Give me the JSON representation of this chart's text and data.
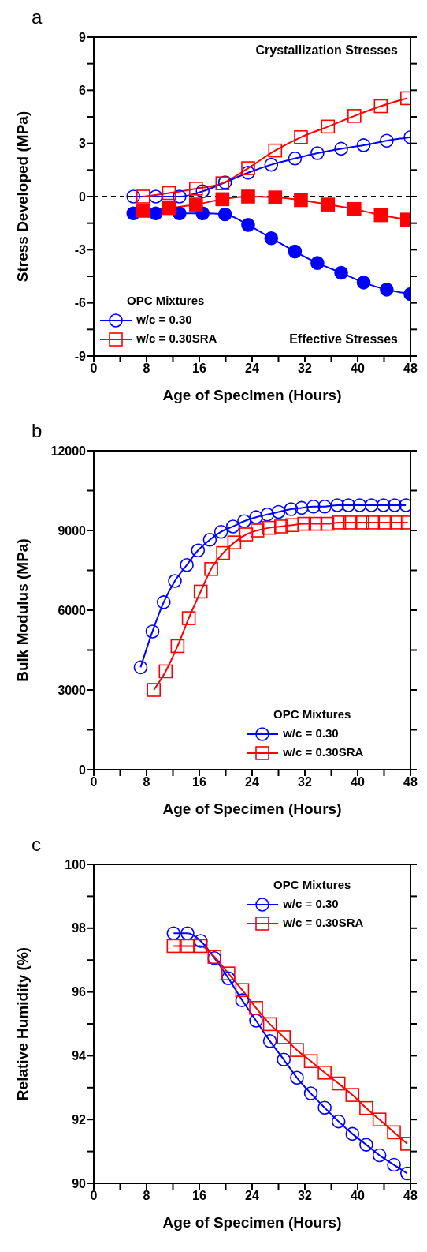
{
  "chart_data": [
    {
      "type": "line",
      "title": "a",
      "xlabel": "Age of Specimen (Hours)",
      "ylabel": "Stress Developed (MPa)",
      "legend_title": "OPC Mixtures",
      "legend": "bottom left",
      "line_style": "solid",
      "annotations": [
        "Crystallization Stresses",
        "Effective Stresses"
      ],
      "xlim": [
        0,
        48
      ],
      "xticks": [
        0,
        {
          "value": 4,
          "label": null
        },
        8,
        {
          "value": 12,
          "label": null
        },
        16,
        {
          "value": 20,
          "label": null
        },
        24,
        {
          "value": 28,
          "label": null
        },
        32,
        {
          "value": 36,
          "label": null
        },
        40,
        {
          "value": 44,
          "label": null
        },
        48
      ],
      "ylim": [
        -9,
        9
      ],
      "yticks": [
        -9,
        {
          "value": -7.5,
          "label": null
        },
        -6,
        {
          "value": -4.5,
          "label": null
        },
        -3,
        {
          "value": -1.5,
          "label": null
        },
        0,
        {
          "value": 1.5,
          "label": null
        },
        3,
        {
          "value": 4.5,
          "label": null
        },
        6,
        {
          "value": 7.5,
          "label": null
        },
        9
      ],
      "ref_lines": [
        {
          "axis": "y",
          "value": 0,
          "color": "#000000",
          "line_style": "dashed"
        }
      ],
      "series": [
        {
          "name": "w/c = 0.30",
          "color": "#0000ff",
          "marker": "circle",
          "x": [
            6.0,
            9.4,
            13.0,
            16.5,
            19.9,
            23.4,
            26.9,
            30.5,
            33.9,
            37.5,
            40.9,
            44.4,
            48.0
          ],
          "values": [
            0,
            0,
            0,
            0.3,
            0.8,
            1.35,
            1.8,
            2.15,
            2.45,
            2.7,
            2.9,
            3.15,
            3.35
          ]
        },
        {
          "color": "#0000ff",
          "marker": "circle",
          "x": [
            6.0,
            9.4,
            13.0,
            16.5,
            19.9,
            23.4,
            26.9,
            30.5,
            33.9,
            37.5,
            40.9,
            44.4,
            48.0
          ],
          "values": [
            -0.95,
            -0.95,
            -0.95,
            -0.95,
            -1.0,
            -1.6,
            -2.35,
            -3.1,
            -3.75,
            -4.3,
            -4.85,
            -5.25,
            -5.5
          ]
        },
        {
          "name": "w/c = 0.30SRA",
          "color": "#ff0000",
          "marker": "square",
          "x": [
            7.5,
            11.4,
            15.5,
            19.5,
            23.4,
            27.5,
            31.4,
            35.5,
            39.5,
            43.5,
            47.5
          ],
          "values": [
            0,
            0.2,
            0.45,
            0.75,
            1.6,
            2.6,
            3.35,
            3.95,
            4.55,
            5.1,
            5.55
          ]
        },
        {
          "color": "#ff0000",
          "marker": "square",
          "x": [
            7.5,
            11.4,
            15.5,
            19.5,
            23.4,
            27.5,
            31.4,
            35.5,
            39.5,
            43.5,
            47.5
          ],
          "values": [
            -0.8,
            -0.65,
            -0.45,
            -0.15,
            0,
            -0.05,
            -0.2,
            -0.45,
            -0.7,
            -1.05,
            -1.3
          ]
        }
      ]
    },
    {
      "type": "line",
      "title": "b",
      "xlabel": "Age of Specimen (Hours)",
      "ylabel": "Bulk Modulus (MPa)",
      "legend_title": "OPC Mixtures",
      "legend": "bottom right",
      "line_style": "solid",
      "xlim": [
        0,
        48
      ],
      "xticks": [
        0,
        {
          "value": 4,
          "label": null
        },
        8,
        {
          "value": 12,
          "label": null
        },
        16,
        {
          "value": 20,
          "label": null
        },
        24,
        {
          "value": 28,
          "label": null
        },
        32,
        {
          "value": 36,
          "label": null
        },
        40,
        {
          "value": 44,
          "label": null
        },
        48
      ],
      "ylim": [
        0,
        12000
      ],
      "yticks": [
        0,
        {
          "value": 1500,
          "label": null
        },
        3000,
        {
          "value": 4500,
          "label": null
        },
        6000,
        {
          "value": 7500,
          "label": null
        },
        9000,
        {
          "value": 10500,
          "label": null
        },
        12000
      ],
      "series": [
        {
          "name": "w/c = 0.30",
          "color": "#0000ff",
          "marker": "circle",
          "x": [
            7.1,
            8.9,
            10.6,
            12.3,
            14.1,
            15.8,
            17.6,
            19.3,
            21.1,
            22.8,
            24.6,
            26.3,
            28.0,
            29.9,
            31.5,
            33.3,
            35.0,
            36.9,
            38.6,
            40.3,
            42.1,
            43.9,
            45.6,
            47.3
          ],
          "values": [
            3850,
            5200,
            6300,
            7100,
            7700,
            8250,
            8650,
            8950,
            9150,
            9350,
            9500,
            9600,
            9700,
            9800,
            9850,
            9900,
            9900,
            9950,
            9950,
            9950,
            9950,
            9950,
            9950,
            9950
          ]
        },
        {
          "name": "w/c = 0.30SRA",
          "color": "#ff0000",
          "marker": "square",
          "x": [
            9.1,
            10.9,
            12.7,
            14.4,
            16.2,
            17.8,
            19.6,
            21.3,
            23.1,
            24.8,
            26.6,
            28.4,
            30.1,
            31.9,
            33.6,
            35.4,
            37.2,
            38.9,
            40.7,
            42.3,
            44.1,
            45.9,
            47.6
          ],
          "values": [
            3000,
            3700,
            4650,
            5700,
            6700,
            7550,
            8150,
            8550,
            8850,
            9000,
            9100,
            9150,
            9200,
            9250,
            9250,
            9250,
            9300,
            9300,
            9300,
            9300,
            9300,
            9300,
            9300
          ]
        }
      ]
    },
    {
      "type": "line",
      "title": "c",
      "xlabel": "Age of Specimen (Hours)",
      "ylabel": "Relative Humidity (%)",
      "legend_title": "OPC Mixtures",
      "legend": "top right",
      "line_style": "solid",
      "xlim": [
        0,
        48
      ],
      "xticks": [
        0,
        {
          "value": 4,
          "label": null
        },
        8,
        {
          "value": 12,
          "label": null
        },
        16,
        {
          "value": 20,
          "label": null
        },
        24,
        {
          "value": 28,
          "label": null
        },
        32,
        {
          "value": 36,
          "label": null
        },
        40,
        {
          "value": 44,
          "label": null
        },
        48
      ],
      "ylim": [
        90,
        100
      ],
      "yticks": [
        90,
        {
          "value": 91,
          "label": null
        },
        92,
        {
          "value": 93,
          "label": null
        },
        94,
        {
          "value": 95,
          "label": null
        },
        96,
        {
          "value": 97,
          "label": null
        },
        98,
        {
          "value": 99,
          "label": null
        },
        100
      ],
      "series": [
        {
          "name": "w/c = 0.30",
          "color": "#0000ff",
          "marker": "circle",
          "x": [
            12.1,
            14.2,
            16.2,
            18.3,
            20.4,
            22.5,
            24.6,
            26.7,
            28.8,
            30.8,
            32.9,
            35.0,
            37.1,
            39.2,
            41.3,
            43.3,
            45.5,
            47.5
          ],
          "values": [
            97.84,
            97.84,
            97.6,
            97.06,
            96.43,
            95.74,
            95.1,
            94.46,
            93.88,
            93.31,
            92.82,
            92.37,
            91.94,
            91.55,
            91.21,
            90.88,
            90.58,
            90.31
          ]
        },
        {
          "name": "w/c = 0.30SRA",
          "color": "#ff0000",
          "marker": "square",
          "x": [
            12.1,
            14.2,
            16.2,
            18.3,
            20.4,
            22.5,
            24.6,
            26.7,
            28.8,
            30.8,
            32.9,
            35.0,
            37.1,
            39.2,
            41.3,
            43.3,
            45.5,
            47.5
          ],
          "values": [
            97.44,
            97.44,
            97.44,
            97.1,
            96.58,
            96.06,
            95.5,
            94.99,
            94.58,
            94.18,
            93.83,
            93.47,
            93.13,
            92.77,
            92.36,
            92.0,
            91.6,
            91.24
          ]
        }
      ]
    }
  ]
}
